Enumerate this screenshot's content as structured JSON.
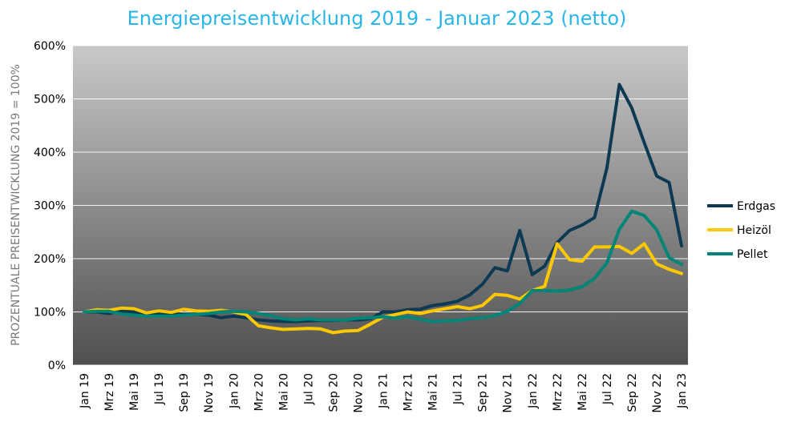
{
  "chart_data": {
    "type": "line",
    "title": "Energiepreisentwicklung 2019 - Januar 2023 (netto)",
    "ylabel": "PROZENTUALE PREISENTWICKLUNG 2019 = 100%",
    "xlabel": "",
    "ylim": [
      0,
      600
    ],
    "yticks": [
      "0%",
      "100%",
      "200%",
      "300%",
      "400%",
      "500%",
      "600%"
    ],
    "grid": true,
    "legend_position": "right",
    "x_tick_labels": [
      "Jan 19",
      "Mrz 19",
      "Mai 19",
      "Jul 19",
      "Sep 19",
      "Nov 19",
      "Jan 20",
      "Mrz 20",
      "Mai 20",
      "Jul 20",
      "Sep 20",
      "Nov 20",
      "Jan 21",
      "Mrz 21",
      "Mai 21",
      "Jul 21",
      "Sep 21",
      "Nov 21",
      "Jan 22",
      "Mrz 22",
      "Mai 22",
      "Jul 22",
      "Sep 22",
      "Nov 22",
      "Jan 23"
    ],
    "x": [
      "Jan 19",
      "Feb 19",
      "Mrz 19",
      "Apr 19",
      "Mai 19",
      "Jun 19",
      "Jul 19",
      "Aug 19",
      "Sep 19",
      "Okt 19",
      "Nov 19",
      "Dez 19",
      "Jan 20",
      "Feb 20",
      "Mrz 20",
      "Apr 20",
      "Mai 20",
      "Jun 20",
      "Jul 20",
      "Aug 20",
      "Sep 20",
      "Okt 20",
      "Nov 20",
      "Dez 20",
      "Jan 21",
      "Feb 21",
      "Mrz 21",
      "Apr 21",
      "Mai 21",
      "Jun 21",
      "Jul 21",
      "Aug 21",
      "Sep 21",
      "Okt 21",
      "Nov 21",
      "Dez 21",
      "Jan 22",
      "Feb 22",
      "Mrz 22",
      "Apr 22",
      "Mai 22",
      "Jun 22",
      "Jul 22",
      "Aug 22",
      "Sep 22",
      "Okt 22",
      "Nov 22",
      "Dez 22",
      "Jan 23"
    ],
    "series": [
      {
        "name": "Erdgas",
        "color": "#0d3a52",
        "values": [
          100,
          100,
          97,
          102,
          100,
          95,
          97,
          96,
          95,
          95,
          94,
          89,
          92,
          89,
          85,
          83,
          82,
          82,
          83,
          84,
          84,
          85,
          85,
          87,
          100,
          100,
          104,
          105,
          112,
          115,
          120,
          132,
          152,
          183,
          177,
          253,
          170,
          186,
          230,
          253,
          263,
          277,
          370,
          527,
          483,
          418,
          355,
          343,
          224
        ]
      },
      {
        "name": "Heizöl",
        "color": "#fcc800",
        "values": [
          100,
          104,
          103,
          107,
          106,
          98,
          102,
          99,
          105,
          102,
          101,
          103,
          100,
          95,
          74,
          70,
          67,
          68,
          69,
          68,
          61,
          64,
          65,
          77,
          90,
          95,
          100,
          97,
          102,
          106,
          110,
          106,
          112,
          133,
          131,
          124,
          140,
          148,
          228,
          198,
          195,
          222,
          222,
          223,
          210,
          228,
          190,
          180,
          172
        ]
      },
      {
        "name": "Pellet",
        "color": "#008577",
        "values": [
          100,
          101,
          101,
          96,
          94,
          92,
          92,
          92,
          94,
          95,
          97,
          100,
          101,
          100,
          97,
          93,
          87,
          85,
          87,
          85,
          85,
          85,
          88,
          89,
          91,
          88,
          91,
          86,
          82,
          83,
          84,
          87,
          89,
          93,
          101,
          116,
          140,
          140,
          139,
          141,
          147,
          163,
          192,
          255,
          289,
          281,
          254,
          202,
          189
        ]
      }
    ]
  }
}
